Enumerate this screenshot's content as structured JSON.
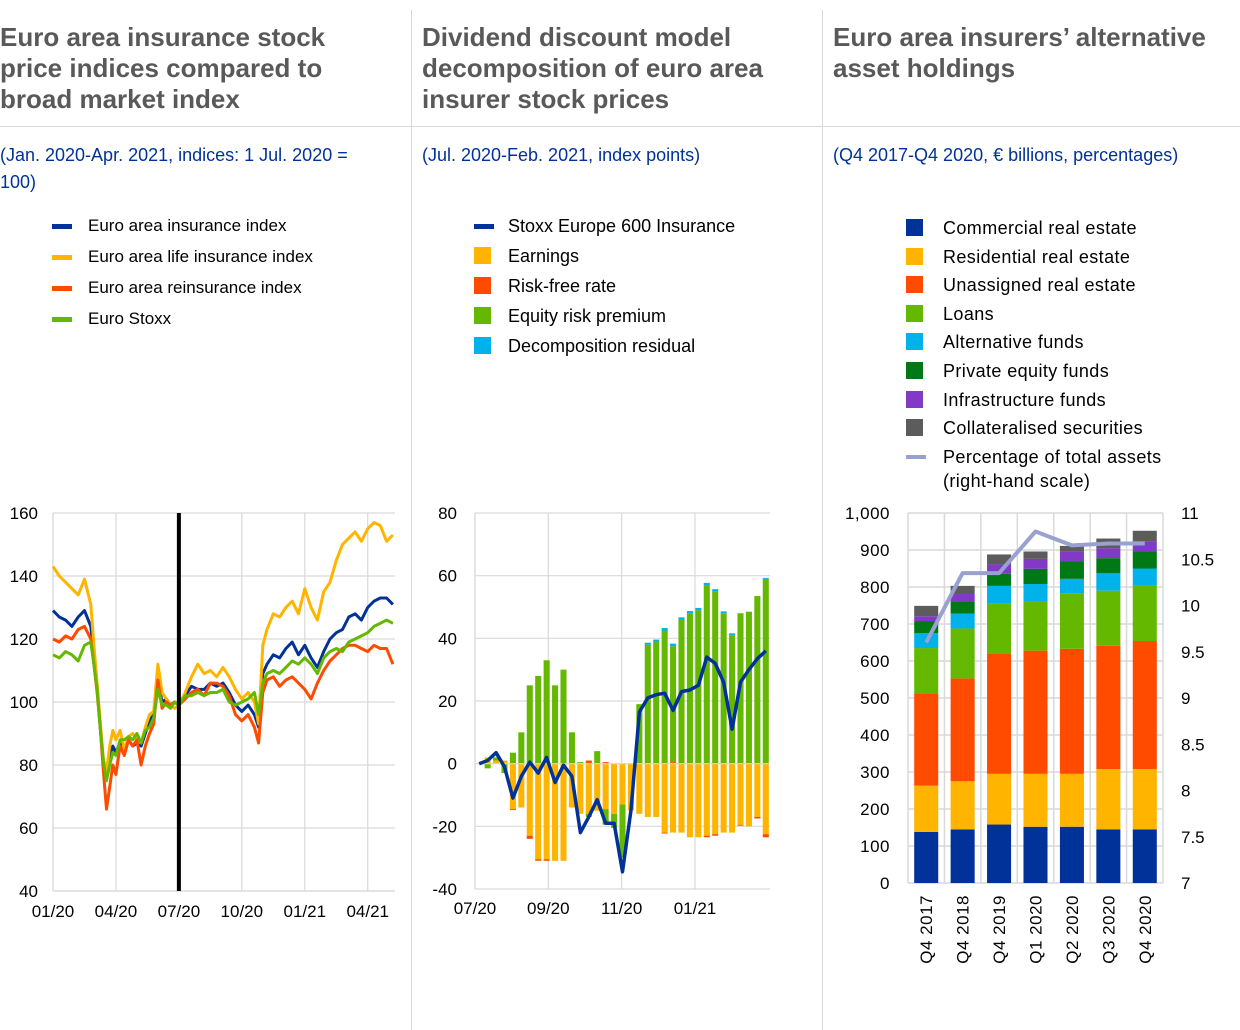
{
  "panels": [
    {
      "title": "Euro area insurance stock price indices compared to broad market index",
      "title_lines": [
        "Euro area insurance stock",
        "price indices compared to",
        "broad market index"
      ],
      "subtitle_lines": [
        "(Jan. 2020-Apr. 2021, indices: 1 Jul. 2020 =",
        "100)"
      ]
    },
    {
      "title": "Dividend discount model decomposition of euro area insurer stock prices",
      "title_lines": [
        "Dividend discount model",
        "decomposition of euro area",
        "insurer stock prices"
      ],
      "subtitle_lines": [
        "(Jul. 2020-Feb. 2021, index points)"
      ]
    },
    {
      "title": "Euro area insurers’ alternative asset holdings",
      "title_lines": [
        "Euro area insurers’ alternative",
        "asset holdings"
      ],
      "subtitle_lines": [
        "(Q4 2017-Q4 2020, € billions, percentages)"
      ]
    }
  ],
  "chart_data": [
    {
      "type": "line",
      "title": "Euro area insurance stock price indices compared to broad market index",
      "subtitle": "(Jan. 2020-Apr. 2021, indices: 1 Jul. 2020 = 100)",
      "xlabel": "",
      "ylabel": "",
      "ylim": [
        40,
        160
      ],
      "yticks": [
        "160",
        "140",
        "120",
        "100",
        "80",
        "60",
        "40"
      ],
      "ytick_values": [
        160,
        140,
        120,
        100,
        80,
        60,
        40
      ],
      "xticks": [
        "01/20",
        "04/20",
        "07/20",
        "10/20",
        "01/21",
        "04/21"
      ],
      "xtick_months": [
        0,
        3,
        6,
        9,
        12,
        15
      ],
      "xlim_months": [
        0,
        16.3
      ],
      "vertical_marker_month": 6,
      "grid": true,
      "legend_position": "top",
      "x_months": [
        0,
        0.3,
        0.6,
        0.9,
        1.2,
        1.5,
        1.8,
        1.95,
        2.1,
        2.25,
        2.4,
        2.55,
        2.7,
        2.85,
        3.0,
        3.2,
        3.4,
        3.6,
        3.8,
        4.0,
        4.2,
        4.4,
        4.6,
        4.8,
        5.0,
        5.2,
        5.4,
        5.6,
        5.8,
        6.0,
        6.3,
        6.6,
        6.9,
        7.2,
        7.5,
        7.8,
        8.1,
        8.4,
        8.7,
        9.0,
        9.3,
        9.6,
        9.8,
        10.0,
        10.2,
        10.5,
        10.8,
        11.1,
        11.4,
        11.7,
        12.0,
        12.3,
        12.6,
        12.9,
        13.2,
        13.5,
        13.8,
        14.1,
        14.4,
        14.7,
        15.0,
        15.3,
        15.6,
        15.9,
        16.2
      ],
      "series": [
        {
          "name": "Euro area insurance index",
          "color": "#003299",
          "values": [
            129,
            127,
            126,
            124,
            127,
            129,
            124,
            115,
            105,
            92,
            80,
            76,
            82,
            86,
            84,
            87,
            85,
            88,
            86,
            87,
            86,
            90,
            94,
            96,
            107,
            100,
            101,
            99,
            100,
            99,
            102,
            105,
            104,
            104,
            106,
            105,
            106,
            103,
            99,
            97,
            99,
            96,
            92,
            109,
            112,
            115,
            114,
            117,
            119,
            115,
            118,
            114,
            111,
            116,
            120,
            122,
            123,
            127,
            128,
            126,
            130,
            132,
            133,
            133,
            131
          ]
        },
        {
          "name": "Euro area life insurance index",
          "color": "#ffb400",
          "values": [
            143,
            140,
            138,
            136,
            134,
            139,
            131,
            118,
            106,
            94,
            82,
            78,
            86,
            91,
            88,
            91,
            85,
            89,
            90,
            88,
            87,
            92,
            96,
            97,
            112,
            103,
            101,
            99,
            98,
            99,
            103,
            108,
            112,
            109,
            110,
            108,
            111,
            108,
            104,
            101,
            103,
            100,
            93,
            118,
            123,
            128,
            127,
            130,
            132,
            128,
            136,
            130,
            126,
            135,
            138,
            145,
            150,
            152,
            154,
            151,
            155,
            157,
            156,
            151,
            153
          ]
        },
        {
          "name": "Euro area reinsurance index",
          "color": "#ff4b00",
          "values": [
            120,
            119,
            121,
            120,
            123,
            124,
            120,
            112,
            103,
            92,
            78,
            66,
            73,
            80,
            77,
            86,
            83,
            88,
            86,
            88,
            80,
            86,
            90,
            93,
            107,
            98,
            100,
            99,
            100,
            99,
            101,
            103,
            104,
            102,
            106,
            106,
            105,
            102,
            96,
            94,
            96,
            92,
            87,
            103,
            107,
            108,
            105,
            107,
            108,
            106,
            104,
            101,
            106,
            110,
            113,
            115,
            117,
            118,
            118,
            117,
            116,
            118,
            117,
            117,
            112
          ]
        },
        {
          "name": "Euro Stoxx",
          "color": "#65b800",
          "values": [
            115,
            114,
            116,
            115,
            113,
            118,
            119,
            112,
            104,
            92,
            81,
            75,
            80,
            84,
            83,
            88,
            88,
            89,
            88,
            90,
            87,
            91,
            92,
            95,
            104,
            99,
            99,
            98,
            100,
            99,
            102,
            102,
            103,
            102,
            103,
            103,
            104,
            100,
            99,
            100,
            101,
            103,
            96,
            106,
            109,
            110,
            109,
            111,
            113,
            112,
            114,
            112,
            109,
            114,
            116,
            117,
            116,
            119,
            120,
            121,
            122,
            124,
            125,
            126,
            125
          ]
        }
      ]
    },
    {
      "type": "bar",
      "stacked": true,
      "title": "Dividend discount model decomposition of euro area insurer stock prices",
      "subtitle": "(Jul. 2020-Feb. 2021, index points)",
      "xlabel": "",
      "ylabel": "",
      "ylim": [
        -40,
        80
      ],
      "yticks": [
        "80",
        "60",
        "40",
        "20",
        "0",
        "-20",
        "-40"
      ],
      "ytick_values": [
        80,
        60,
        40,
        20,
        0,
        -20,
        -40
      ],
      "xticks": [
        "07/20",
        "09/20",
        "11/20",
        "01/21"
      ],
      "xtick_positions_weeks": [
        0,
        8.7,
        17.4,
        26.1
      ],
      "n_weeks": 35,
      "grid": true,
      "legend_position": "top",
      "series": [
        {
          "name": "Earnings",
          "kind": "bar",
          "color": "#ffb400",
          "values": [
            0,
            2,
            1,
            1,
            -14.5,
            -14,
            -23,
            -30.5,
            -30.5,
            -31,
            -31,
            -14,
            -16,
            -16,
            -15,
            -14.5,
            -16,
            -13,
            -15,
            -16,
            -17,
            -17,
            -22,
            -22,
            -22,
            -23.5,
            -23.5,
            -23,
            -22.5,
            -22,
            -22,
            -19.5,
            -20,
            -17,
            -22.5
          ]
        },
        {
          "name": "Risk-free rate",
          "kind": "bar",
          "color": "#ff4b00",
          "values": [
            0,
            0,
            0,
            0,
            -0.3,
            0,
            -1,
            -0.5,
            -0.5,
            0,
            0,
            0,
            0,
            1,
            0,
            0.5,
            0,
            0,
            0,
            0,
            0,
            0,
            -0.3,
            0.5,
            0,
            0,
            0,
            -0.5,
            -0.5,
            0,
            0,
            -0.3,
            0,
            -0.5,
            -1
          ]
        },
        {
          "name": "Equity risk premium",
          "kind": "bar",
          "color": "#65b800",
          "values": [
            0,
            -1.5,
            1,
            -3,
            3.5,
            10,
            25,
            28,
            33,
            25,
            30,
            10,
            0.5,
            -1,
            4,
            -5,
            -4.5,
            -17,
            0,
            19,
            38,
            39,
            42.5,
            37,
            46,
            48,
            49,
            57,
            55,
            48,
            41,
            48,
            48.5,
            53.5,
            59
          ]
        },
        {
          "name": "Decomposition residual",
          "kind": "bar",
          "color": "#00b1ea",
          "values": [
            0,
            0,
            0,
            0,
            0,
            0,
            0,
            0,
            0,
            0,
            0,
            0,
            0,
            0,
            0,
            0,
            0,
            0,
            0,
            0,
            0.6,
            0.6,
            0.8,
            0.8,
            0.7,
            0.7,
            0.7,
            0.7,
            0.7,
            0.6,
            0.6,
            0,
            0,
            0,
            0.3
          ]
        },
        {
          "name": "Stoxx Europe 600 Insurance",
          "kind": "line",
          "color": "#003299",
          "values": [
            0,
            1,
            3.5,
            -1,
            -11,
            -4,
            0.5,
            -3,
            2,
            -6,
            -0.5,
            -4,
            -22,
            -17,
            -11.5,
            -19,
            -19,
            -34.5,
            -15,
            16.5,
            21,
            22,
            22.5,
            17,
            23,
            23.5,
            25,
            34,
            32,
            26,
            11,
            26,
            30,
            33.5,
            36
          ]
        }
      ]
    },
    {
      "type": "bar",
      "stacked": true,
      "title": "Euro area insurers’ alternative asset holdings",
      "subtitle": "(Q4 2017-Q4 2020, € billions, percentages)",
      "xlabel": "",
      "ylabel": "",
      "ylim": [
        0,
        1000
      ],
      "y2lim": [
        7,
        11
      ],
      "yticks": [
        "1,000",
        "900",
        "800",
        "700",
        "600",
        "500",
        "400",
        "300",
        "200",
        "100",
        "0"
      ],
      "ytick_values": [
        1000,
        900,
        800,
        700,
        600,
        500,
        400,
        300,
        200,
        100,
        0
      ],
      "y2ticks": [
        "11",
        "10.5",
        "10",
        "9.5",
        "9",
        "8.5",
        "8",
        "7.5",
        "7"
      ],
      "y2tick_values": [
        11,
        10.5,
        10,
        9.5,
        9,
        8.5,
        8,
        7.5,
        7
      ],
      "categories": [
        "Q4 2017",
        "Q4 2018",
        "Q4 2019",
        "Q1 2020",
        "Q2 2020",
        "Q3 2020",
        "Q4 2020"
      ],
      "grid": true,
      "legend_position": "top",
      "series": [
        {
          "name": "Commercial real estate",
          "kind": "bar",
          "color": "#003299",
          "values": [
            138,
            145,
            158,
            152,
            152,
            145,
            145
          ]
        },
        {
          "name": "Residential real estate",
          "kind": "bar",
          "color": "#ffb400",
          "values": [
            125,
            130,
            137,
            143,
            143,
            163,
            163
          ]
        },
        {
          "name": "Unassigned real estate",
          "kind": "bar",
          "color": "#ff4b00",
          "values": [
            250,
            278,
            325,
            333,
            338,
            333,
            346
          ]
        },
        {
          "name": "Loans",
          "kind": "bar",
          "color": "#65b800",
          "values": [
            122,
            135,
            135,
            133,
            150,
            149,
            149
          ]
        },
        {
          "name": "Alternative funds",
          "kind": "bar",
          "color": "#00b1ea",
          "values": [
            40,
            40,
            48,
            47,
            39,
            47,
            47
          ]
        },
        {
          "name": "Private equity funds",
          "kind": "bar",
          "color": "#007816",
          "values": [
            33,
            33,
            33,
            41,
            48,
            41,
            47
          ]
        },
        {
          "name": "Infrastructure funds",
          "kind": "bar",
          "color": "#8139c6",
          "values": [
            13,
            20,
            25,
            27,
            27,
            27,
            27
          ]
        },
        {
          "name": "Collateralised securities",
          "kind": "bar",
          "color": "#5c5c5c",
          "values": [
            28,
            22,
            27,
            20,
            14,
            26,
            28
          ]
        },
        {
          "name": "Percentage of total assets (right-hand scale)",
          "kind": "line",
          "axis": "right",
          "color": "#98a1d0",
          "values": [
            9.6,
            10.35,
            10.35,
            10.8,
            10.65,
            10.67,
            10.67
          ]
        }
      ],
      "legend_labels": [
        "Commercial real estate",
        "Residential real estate",
        "Unassigned real estate",
        "Loans",
        "Alternative funds",
        "Private equity funds",
        "Infrastructure funds",
        "Collateralised securities",
        "Percentage of total assets",
        "(right-hand scale)"
      ]
    }
  ]
}
